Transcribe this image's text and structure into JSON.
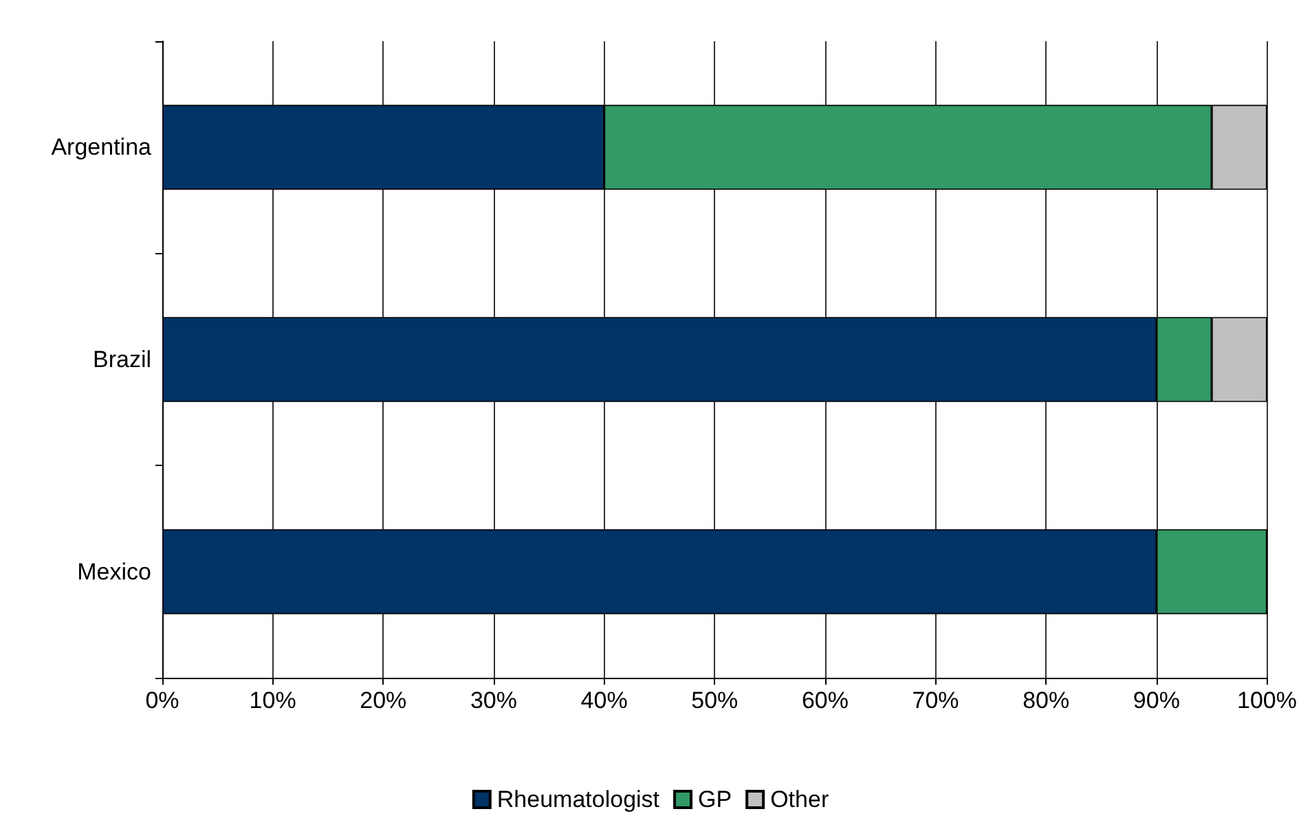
{
  "chart_data": {
    "type": "bar",
    "orientation": "horizontal",
    "stacked": true,
    "categories": [
      "Argentina",
      "Brazil",
      "Mexico"
    ],
    "series": [
      {
        "name": "Rheumatologist",
        "color": "#003366",
        "values": [
          40,
          90,
          90
        ]
      },
      {
        "name": "GP",
        "color": "#339966",
        "values": [
          55,
          5,
          10
        ]
      },
      {
        "name": "Other",
        "color": "#c0c0c0",
        "values": [
          5,
          5,
          0
        ]
      }
    ],
    "xlim": [
      0,
      100
    ],
    "xticks": [
      {
        "value": 0,
        "label": "0%"
      },
      {
        "value": 10,
        "label": "10%"
      },
      {
        "value": 20,
        "label": "20%"
      },
      {
        "value": 30,
        "label": "30%"
      },
      {
        "value": 40,
        "label": "40%"
      },
      {
        "value": 50,
        "label": "50%"
      },
      {
        "value": 60,
        "label": "60%"
      },
      {
        "value": 70,
        "label": "70%"
      },
      {
        "value": 80,
        "label": "80%"
      },
      {
        "value": 90,
        "label": "90%"
      },
      {
        "value": 100,
        "label": "100%"
      }
    ],
    "grid": "x",
    "legend": "bottom"
  }
}
